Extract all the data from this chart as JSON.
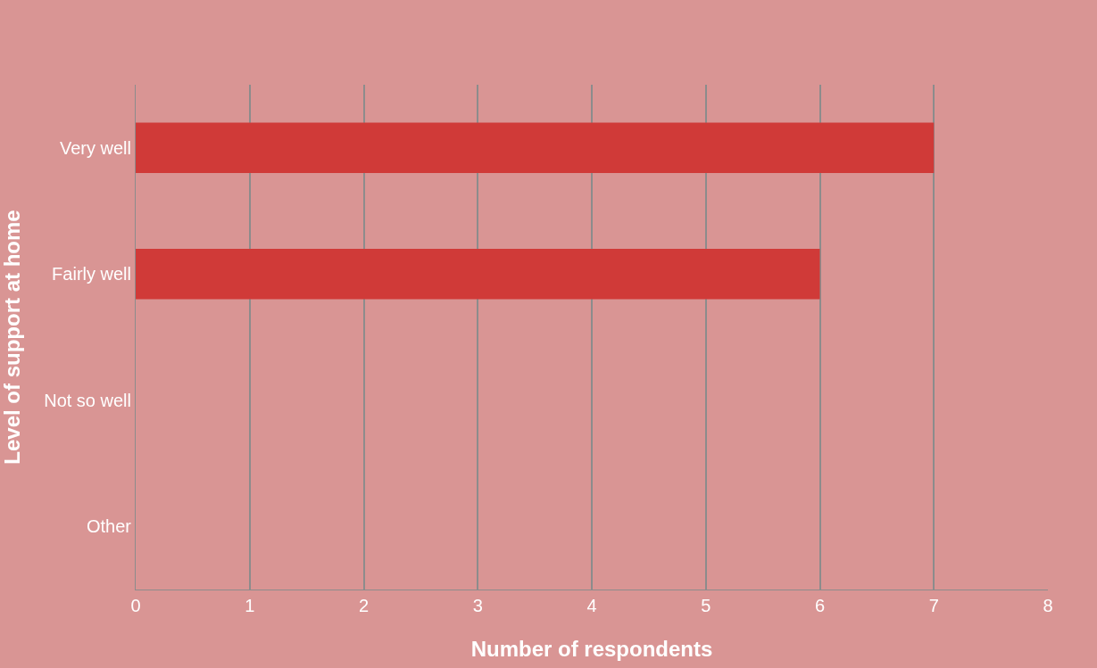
{
  "chart_data": {
    "type": "bar",
    "orientation": "horizontal",
    "xlabel": "Number of respondents",
    "ylabel": "Level of support at home",
    "categories": [
      "Very well",
      "Fairly well",
      "Not so well",
      "Other"
    ],
    "values": [
      7,
      6,
      0,
      0
    ],
    "color": "#d03a38",
    "xlim": [
      0,
      8
    ],
    "xticks": [
      0,
      1,
      2,
      3,
      4,
      5,
      6,
      7,
      8
    ],
    "grid": "x",
    "legend": false
  }
}
